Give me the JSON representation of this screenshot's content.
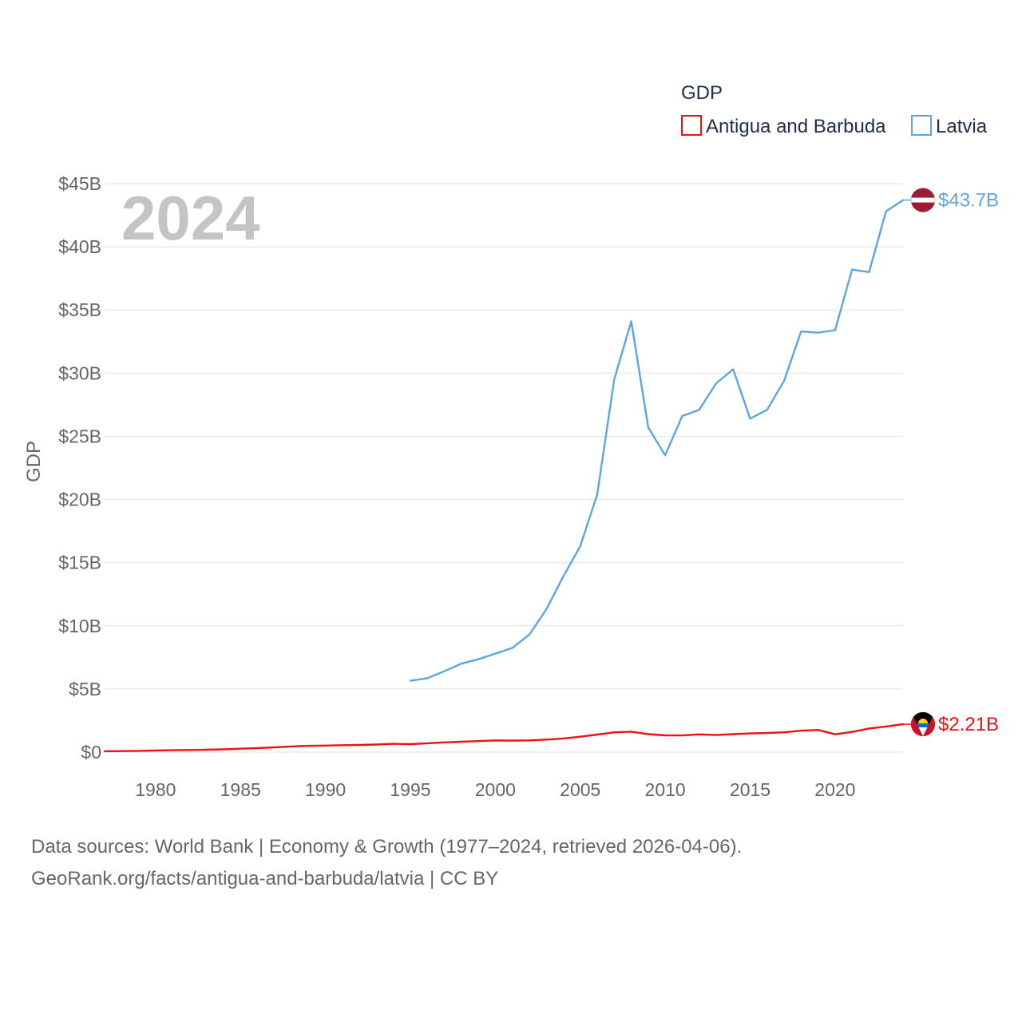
{
  "chart_data": {
    "type": "line",
    "title": "",
    "current_year_label": "2024",
    "ylabel": "GDP",
    "xlabel": "",
    "xlim": [
      1977,
      2024
    ],
    "ylim": [
      0,
      45
    ],
    "grid": true,
    "x_ticks": [
      1980,
      1985,
      1990,
      1995,
      2000,
      2005,
      2010,
      2015,
      2020
    ],
    "x_tick_labels": [
      "1980",
      "1985",
      "1990",
      "1995",
      "2000",
      "2005",
      "2010",
      "2015",
      "2020"
    ],
    "y_ticks": [
      0,
      5,
      10,
      15,
      20,
      25,
      30,
      35,
      40,
      45
    ],
    "y_tick_labels": [
      "$0",
      "$5B",
      "$10B",
      "$15B",
      "$20B",
      "$25B",
      "$30B",
      "$35B",
      "$40B",
      "$45B"
    ],
    "legend": {
      "title": "GDP",
      "placement": "top-right",
      "entries": [
        "Antigua and Barbuda",
        "Latvia"
      ]
    },
    "series": [
      {
        "name": "Antigua and Barbuda",
        "color": "#ee1111",
        "end_label": "$2.21B",
        "flag_icon": "antigua-and-barbuda-flag-icon",
        "x": [
          1977,
          1978,
          1979,
          1980,
          1981,
          1982,
          1983,
          1984,
          1985,
          1986,
          1987,
          1988,
          1989,
          1990,
          1991,
          1992,
          1993,
          1994,
          1995,
          1996,
          1997,
          1998,
          1999,
          2000,
          2001,
          2002,
          2003,
          2004,
          2005,
          2006,
          2007,
          2008,
          2009,
          2010,
          2011,
          2012,
          2013,
          2014,
          2015,
          2016,
          2017,
          2018,
          2019,
          2020,
          2021,
          2022,
          2023,
          2024
        ],
        "values": [
          0.07,
          0.08,
          0.1,
          0.13,
          0.15,
          0.17,
          0.19,
          0.22,
          0.27,
          0.32,
          0.38,
          0.45,
          0.5,
          0.52,
          0.55,
          0.57,
          0.6,
          0.66,
          0.63,
          0.7,
          0.77,
          0.82,
          0.87,
          0.93,
          0.91,
          0.93,
          0.99,
          1.08,
          1.22,
          1.39,
          1.57,
          1.62,
          1.42,
          1.33,
          1.32,
          1.4,
          1.35,
          1.42,
          1.48,
          1.52,
          1.57,
          1.7,
          1.76,
          1.41,
          1.6,
          1.87,
          2.03,
          2.21
        ]
      },
      {
        "name": "Latvia",
        "color": "#5da5e0",
        "end_label": "$43.7B",
        "flag_icon": "latvia-flag-icon",
        "x": [
          1995,
          1996,
          1997,
          1998,
          1999,
          2000,
          2001,
          2002,
          2003,
          2004,
          2005,
          2006,
          2007,
          2008,
          2009,
          2010,
          2011,
          2012,
          2013,
          2014,
          2015,
          2016,
          2017,
          2018,
          2019,
          2020,
          2021,
          2022,
          2023,
          2024
        ],
        "values": [
          5.65,
          5.85,
          6.4,
          7.0,
          7.35,
          7.8,
          8.25,
          9.3,
          11.3,
          13.9,
          16.3,
          20.4,
          29.5,
          34.1,
          25.7,
          23.5,
          26.6,
          27.1,
          29.2,
          30.3,
          26.4,
          27.1,
          29.4,
          33.3,
          33.2,
          33.4,
          38.2,
          38.0,
          42.8,
          43.7
        ]
      }
    ]
  },
  "footer": {
    "source_line": "Data sources: World Bank | Economy & Growth (1977–2024, retrieved 2026-04-06).",
    "url_line": "GeoRank.org/facts/antigua-and-barbuda/latvia | CC BY"
  }
}
